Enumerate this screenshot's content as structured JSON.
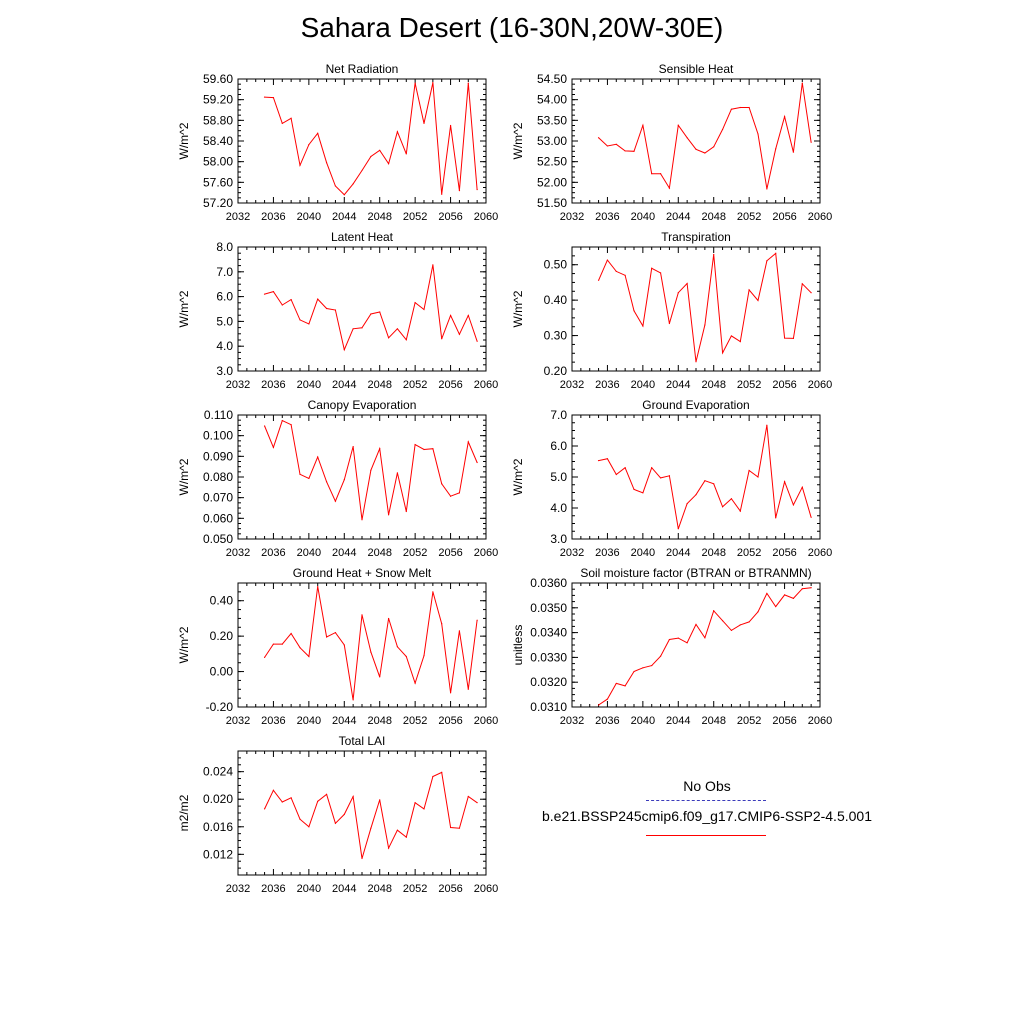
{
  "title": "Sahara Desert (16-30N,20W-30E)",
  "legend": {
    "entries": [
      {
        "label": "No Obs",
        "color": "#3b3bbb",
        "dash": true
      },
      {
        "label": "b.e21.BSSP245cmip6.f09_g17.CMIP6-SSP2-4.5.001",
        "color": "#ff0000",
        "dash": false
      }
    ]
  },
  "chart_data": [
    {
      "type": "line",
      "title": "Net Radiation",
      "ylabel": "W/m^2",
      "xlim": [
        2032,
        2060
      ],
      "xticks": [
        "2032",
        "2036",
        "2040",
        "2044",
        "2048",
        "2052",
        "2056",
        "2060"
      ],
      "ylim": [
        57.2,
        59.6
      ],
      "yticks": [
        "57.20",
        "57.60",
        "58.00",
        "58.40",
        "58.80",
        "59.20",
        "59.60"
      ],
      "color": "#ff0000",
      "x": [
        2035,
        2036,
        2037,
        2038,
        2039,
        2040,
        2041,
        2042,
        2043,
        2044,
        2045,
        2046,
        2047,
        2048,
        2049,
        2050,
        2051,
        2052,
        2053,
        2054,
        2055,
        2056,
        2057,
        2058,
        2059
      ],
      "values": [
        59.25,
        59.24,
        58.74,
        58.84,
        57.93,
        58.33,
        58.55,
        57.98,
        57.53,
        57.36,
        57.57,
        57.83,
        58.1,
        58.22,
        57.96,
        58.58,
        58.15,
        59.52,
        58.74,
        59.53,
        57.37,
        58.7,
        57.44,
        59.52,
        57.46
      ]
    },
    {
      "type": "line",
      "title": "Sensible Heat",
      "ylabel": "W/m^2",
      "xlim": [
        2032,
        2060
      ],
      "xticks": [
        "2032",
        "2036",
        "2040",
        "2044",
        "2048",
        "2052",
        "2056",
        "2060"
      ],
      "ylim": [
        51.5,
        54.5
      ],
      "yticks": [
        "51.50",
        "52.00",
        "52.50",
        "53.00",
        "53.50",
        "54.00",
        "54.50"
      ],
      "color": "#ff0000",
      "x": [
        2035,
        2036,
        2037,
        2038,
        2039,
        2040,
        2041,
        2042,
        2043,
        2044,
        2045,
        2046,
        2047,
        2048,
        2049,
        2050,
        2051,
        2052,
        2053,
        2054,
        2055,
        2056,
        2057,
        2058,
        2059
      ],
      "values": [
        53.08,
        52.88,
        52.92,
        52.76,
        52.75,
        53.38,
        52.21,
        52.21,
        51.86,
        53.38,
        53.08,
        52.8,
        52.71,
        52.86,
        53.28,
        53.77,
        53.81,
        53.81,
        53.17,
        51.84,
        52.81,
        53.59,
        52.73,
        54.4,
        52.97
      ]
    },
    {
      "type": "line",
      "title": "Latent Heat",
      "ylabel": "W/m^2",
      "xlim": [
        2032,
        2060
      ],
      "xticks": [
        "2032",
        "2036",
        "2040",
        "2044",
        "2048",
        "2052",
        "2056",
        "2060"
      ],
      "ylim": [
        3.0,
        8.0
      ],
      "yticks": [
        "3.0",
        "4.0",
        "5.0",
        "6.0",
        "7.0",
        "8.0"
      ],
      "color": "#ff0000",
      "x": [
        2035,
        2036,
        2037,
        2038,
        2039,
        2040,
        2041,
        2042,
        2043,
        2044,
        2045,
        2046,
        2047,
        2048,
        2049,
        2050,
        2051,
        2052,
        2053,
        2054,
        2055,
        2056,
        2057,
        2058,
        2059
      ],
      "values": [
        6.1,
        6.2,
        5.66,
        5.88,
        5.06,
        4.9,
        5.9,
        5.52,
        5.46,
        3.86,
        4.7,
        4.74,
        5.3,
        5.38,
        4.34,
        4.7,
        4.26,
        5.76,
        5.48,
        7.28,
        4.3,
        5.24,
        4.48,
        5.24,
        4.2
      ]
    },
    {
      "type": "line",
      "title": "Transpiration",
      "ylabel": "W/m^2",
      "xlim": [
        2032,
        2060
      ],
      "xticks": [
        "2032",
        "2036",
        "2040",
        "2044",
        "2048",
        "2052",
        "2056",
        "2060"
      ],
      "ylim": [
        0.2,
        0.55
      ],
      "yticks": [
        "0.20",
        "0.30",
        "0.40",
        "0.50"
      ],
      "color": "#ff0000",
      "x": [
        2035,
        2036,
        2037,
        2038,
        2039,
        2040,
        2041,
        2042,
        2043,
        2044,
        2045,
        2046,
        2047,
        2048,
        2049,
        2050,
        2051,
        2052,
        2053,
        2054,
        2055,
        2056,
        2057,
        2058,
        2059
      ],
      "values": [
        0.456,
        0.513,
        0.481,
        0.47,
        0.37,
        0.327,
        0.49,
        0.477,
        0.334,
        0.421,
        0.447,
        0.226,
        0.33,
        0.529,
        0.251,
        0.299,
        0.283,
        0.429,
        0.399,
        0.511,
        0.532,
        0.293,
        0.292,
        0.446,
        0.421
      ]
    },
    {
      "type": "line",
      "title": "Canopy Evaporation",
      "ylabel": "W/m^2",
      "xlim": [
        2032,
        2060
      ],
      "xticks": [
        "2032",
        "2036",
        "2040",
        "2044",
        "2048",
        "2052",
        "2056",
        "2060"
      ],
      "ylim": [
        0.05,
        0.11
      ],
      "yticks": [
        "0.050",
        "0.060",
        "0.070",
        "0.080",
        "0.090",
        "0.100",
        "0.110"
      ],
      "color": "#ff0000",
      "x": [
        2035,
        2036,
        2037,
        2038,
        2039,
        2040,
        2041,
        2042,
        2043,
        2044,
        2045,
        2046,
        2047,
        2048,
        2049,
        2050,
        2051,
        2052,
        2053,
        2054,
        2055,
        2056,
        2057,
        2058,
        2059
      ],
      "values": [
        0.1047,
        0.0943,
        0.1073,
        0.1053,
        0.0813,
        0.0793,
        0.0897,
        0.0777,
        0.0683,
        0.0787,
        0.0947,
        0.0593,
        0.0833,
        0.0937,
        0.0617,
        0.082,
        0.0633,
        0.0957,
        0.0933,
        0.0937,
        0.0767,
        0.0707,
        0.0723,
        0.097,
        0.087
      ]
    },
    {
      "type": "line",
      "title": "Ground Evaporation",
      "ylabel": "W/m^2",
      "xlim": [
        2032,
        2060
      ],
      "xticks": [
        "2032",
        "2036",
        "2040",
        "2044",
        "2048",
        "2052",
        "2056",
        "2060"
      ],
      "ylim": [
        3.0,
        7.0
      ],
      "yticks": [
        "3.0",
        "4.0",
        "5.0",
        "6.0",
        "7.0"
      ],
      "color": "#ff0000",
      "x": [
        2035,
        2036,
        2037,
        2038,
        2039,
        2040,
        2041,
        2042,
        2043,
        2044,
        2045,
        2046,
        2047,
        2048,
        2049,
        2050,
        2051,
        2052,
        2053,
        2054,
        2055,
        2056,
        2057,
        2058,
        2059
      ],
      "values": [
        5.53,
        5.59,
        5.08,
        5.3,
        4.6,
        4.49,
        5.3,
        4.97,
        5.04,
        3.33,
        4.14,
        4.43,
        4.88,
        4.78,
        4.04,
        4.3,
        3.9,
        5.21,
        5.0,
        6.67,
        3.68,
        4.85,
        4.1,
        4.67,
        3.7
      ]
    },
    {
      "type": "line",
      "title": "Ground Heat + Snow Melt",
      "ylabel": "W/m^2",
      "xlim": [
        2032,
        2060
      ],
      "xticks": [
        "2032",
        "2036",
        "2040",
        "2044",
        "2048",
        "2052",
        "2056",
        "2060"
      ],
      "ylim": [
        -0.2,
        0.5
      ],
      "yticks": [
        "-0.20",
        "0.00",
        "0.20",
        "0.40"
      ],
      "color": "#ff0000",
      "x": [
        2035,
        2036,
        2037,
        2038,
        2039,
        2040,
        2041,
        2042,
        2043,
        2044,
        2045,
        2046,
        2047,
        2048,
        2049,
        2050,
        2051,
        2052,
        2053,
        2054,
        2055,
        2056,
        2057,
        2058,
        2059
      ],
      "values": [
        0.08,
        0.155,
        0.155,
        0.215,
        0.135,
        0.085,
        0.48,
        0.195,
        0.22,
        0.15,
        -0.16,
        0.32,
        0.11,
        -0.03,
        0.3,
        0.14,
        0.085,
        -0.065,
        0.09,
        0.45,
        0.27,
        -0.12,
        0.23,
        -0.1,
        0.29
      ]
    },
    {
      "type": "line",
      "title": "Soil moisture factor (BTRAN or BTRANMN)",
      "ylabel": "unitless",
      "xlim": [
        2032,
        2060
      ],
      "xticks": [
        "2032",
        "2036",
        "2040",
        "2044",
        "2048",
        "2052",
        "2056",
        "2060"
      ],
      "ylim": [
        0.031,
        0.036
      ],
      "yticks": [
        "0.0310",
        "0.0320",
        "0.0330",
        "0.0340",
        "0.0350",
        "0.0360"
      ],
      "color": "#ff0000",
      "x": [
        2035,
        2036,
        2037,
        2038,
        2039,
        2040,
        2041,
        2042,
        2043,
        2044,
        2045,
        2046,
        2047,
        2048,
        2049,
        2050,
        2051,
        2052,
        2053,
        2054,
        2055,
        2056,
        2057,
        2058,
        2059
      ],
      "values": [
        0.03108,
        0.03132,
        0.03195,
        0.03185,
        0.03243,
        0.03258,
        0.03267,
        0.03305,
        0.03372,
        0.03378,
        0.03359,
        0.03433,
        0.03379,
        0.03488,
        0.03448,
        0.03409,
        0.03431,
        0.03443,
        0.03484,
        0.03558,
        0.03505,
        0.03552,
        0.03538,
        0.03577,
        0.03581
      ]
    },
    {
      "type": "line",
      "title": "Total LAI",
      "ylabel": "m2/m2",
      "xlim": [
        2032,
        2060
      ],
      "xticks": [
        "2032",
        "2036",
        "2040",
        "2044",
        "2048",
        "2052",
        "2056",
        "2060"
      ],
      "ylim": [
        0.009,
        0.027
      ],
      "yticks": [
        "0.012",
        "0.016",
        "0.020",
        "0.024"
      ],
      "color": "#ff0000",
      "x": [
        2035,
        2036,
        2037,
        2038,
        2039,
        2040,
        2041,
        2042,
        2043,
        2044,
        2045,
        2046,
        2047,
        2048,
        2049,
        2050,
        2051,
        2052,
        2053,
        2054,
        2055,
        2056,
        2057,
        2058,
        2059
      ],
      "values": [
        0.0186,
        0.0213,
        0.0196,
        0.0202,
        0.0171,
        0.016,
        0.0197,
        0.0207,
        0.0165,
        0.0178,
        0.0204,
        0.0114,
        0.0158,
        0.0199,
        0.0129,
        0.0155,
        0.0145,
        0.0195,
        0.0186,
        0.0233,
        0.0239,
        0.0159,
        0.0158,
        0.0204,
        0.0195
      ]
    }
  ]
}
